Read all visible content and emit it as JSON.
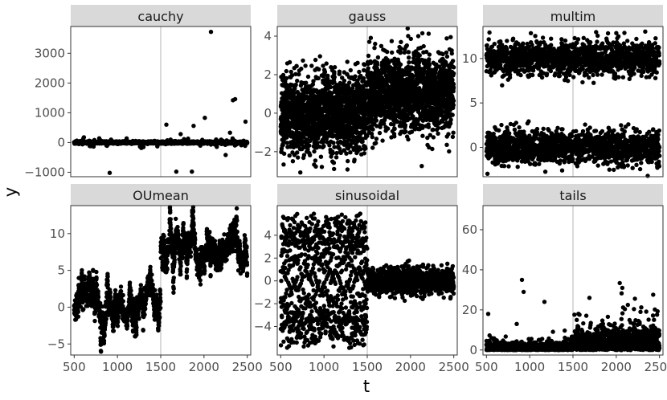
{
  "chart_data": {
    "type": "scatter",
    "xlabel": "t",
    "ylabel": "y",
    "xlim": [
      460,
      2540
    ],
    "x_ticks": [
      500,
      1000,
      1500,
      2000,
      2500
    ],
    "x_tick_labels": [
      "500",
      "1000",
      "1500",
      "2000",
      "2500"
    ],
    "changepoint_x": 1500,
    "point_color": "#000000",
    "vline_color": "#b3b3b3",
    "strip_color": "#d9d9d9",
    "panels": [
      {
        "name": "cauchy",
        "ylim": [
          -1150,
          3900
        ],
        "y_ticks": [
          -1000,
          0,
          1000,
          2000,
          3000
        ],
        "y_tick_labels": [
          "−1000",
          "0",
          "1000",
          "2000",
          "3000"
        ],
        "generator": "cauchy",
        "outliers": [
          {
            "x": 910,
            "y": -1020
          },
          {
            "x": 1565,
            "y": 600
          },
          {
            "x": 1680,
            "y": -980
          },
          {
            "x": 1860,
            "y": -980
          },
          {
            "x": 1880,
            "y": 560
          },
          {
            "x": 2010,
            "y": 830
          },
          {
            "x": 2080,
            "y": 3720
          },
          {
            "x": 2335,
            "y": 1420
          },
          {
            "x": 2360,
            "y": 1460
          },
          {
            "x": 2480,
            "y": 700
          },
          {
            "x": 1730,
            "y": 280
          },
          {
            "x": 2250,
            "y": -420
          },
          {
            "x": 2300,
            "y": 330
          },
          {
            "x": 790,
            "y": 140
          },
          {
            "x": 1260,
            "y": -140
          }
        ]
      },
      {
        "name": "gauss",
        "ylim": [
          -3.3,
          4.5
        ],
        "y_ticks": [
          -2,
          0,
          2,
          4
        ],
        "y_tick_labels": [
          "−2",
          "0",
          "2",
          "4"
        ],
        "generator": "gauss",
        "segments": [
          {
            "from": 500,
            "to": 1500,
            "mean": 0.0,
            "sd": 1.0
          },
          {
            "from": 1500,
            "to": 2500,
            "mean": 1.0,
            "sd": 1.0
          }
        ]
      },
      {
        "name": "multim",
        "ylim": [
          -3.3,
          13.6
        ],
        "y_ticks": [
          0,
          5,
          10
        ],
        "y_tick_labels": [
          "0",
          "5",
          "10"
        ],
        "generator": "bimodal",
        "modes": [
          {
            "mean": 0.0,
            "sd": 1.0
          },
          {
            "mean": 10.0,
            "sd": 1.0
          }
        ]
      },
      {
        "name": "OUmean",
        "ylim": [
          -6.5,
          13.8
        ],
        "y_ticks": [
          -5,
          0,
          5,
          10
        ],
        "y_tick_labels": [
          "−5",
          "0",
          "5",
          "10"
        ],
        "generator": "ou",
        "segments": [
          {
            "from": 500,
            "to": 1500,
            "mean": 0.0
          },
          {
            "from": 1500,
            "to": 2500,
            "mean": 7.5
          }
        ],
        "x_axis_visible": true
      },
      {
        "name": "sinusoidal",
        "ylim": [
          -6.5,
          6.6
        ],
        "y_ticks": [
          -4,
          -2,
          0,
          2,
          4
        ],
        "y_tick_labels": [
          "−4",
          "−2",
          "0",
          "2",
          "4"
        ],
        "generator": "sinusoidal",
        "segments": [
          {
            "from": 500,
            "to": 1500,
            "amplitude": 6.0
          },
          {
            "from": 1500,
            "to": 2500,
            "amplitude": 1.2
          }
        ],
        "x_axis_visible": true
      },
      {
        "name": "tails",
        "ylim": [
          -2.5,
          72
        ],
        "y_ticks": [
          0,
          20,
          40,
          60
        ],
        "y_tick_labels": [
          "0",
          "20",
          "40",
          "60"
        ],
        "generator": "tails",
        "segments": [
          {
            "from": 500,
            "to": 1500,
            "scale": 1.5
          },
          {
            "from": 1500,
            "to": 2500,
            "scale": 5.0
          }
        ],
        "outliers": [
          {
            "x": 520,
            "y": 18
          },
          {
            "x": 910,
            "y": 35
          },
          {
            "x": 930,
            "y": 29
          },
          {
            "x": 1170,
            "y": 24
          },
          {
            "x": 2070,
            "y": 31
          },
          {
            "x": 1690,
            "y": 26
          },
          {
            "x": 850,
            "y": 13
          },
          {
            "x": 2280,
            "y": 19
          }
        ],
        "x_axis_visible": true
      }
    ]
  }
}
